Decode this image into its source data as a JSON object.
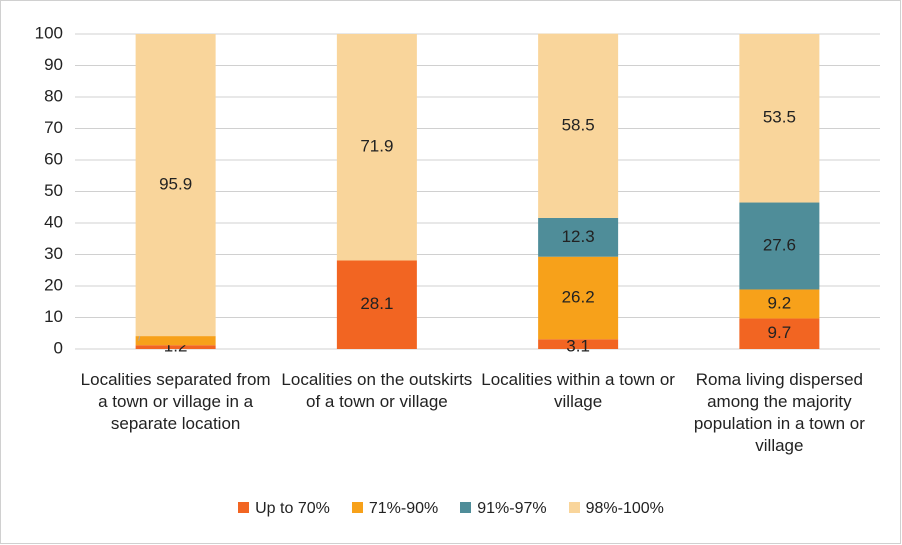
{
  "chart_data": {
    "type": "stacked_bar",
    "categories": [
      "Localities separated from a town or village in a separate location",
      "Localities on the outskirts of a town or village",
      "Localities within a town or village",
      "Roma living dispersed among the majority population in a town or village"
    ],
    "series": [
      {
        "name": "Up to 70%",
        "color": "#f26522",
        "values": [
          1.2,
          28.1,
          3.1,
          9.7
        ]
      },
      {
        "name": "71%-90%",
        "color": "#f7a11a",
        "values": [
          2.9,
          0,
          26.2,
          9.2
        ]
      },
      {
        "name": "91%-97%",
        "color": "#4f8d99",
        "values": [
          0,
          0,
          12.3,
          27.6
        ]
      },
      {
        "name": "98%-100%",
        "color": "#f9d59b",
        "values": [
          95.9,
          71.9,
          58.5,
          53.5
        ]
      }
    ],
    "ylim": [
      0,
      100
    ],
    "yticks": [
      0,
      10,
      20,
      30,
      40,
      50,
      60,
      70,
      80,
      90,
      100
    ],
    "grid": true,
    "legend": "bottom"
  }
}
